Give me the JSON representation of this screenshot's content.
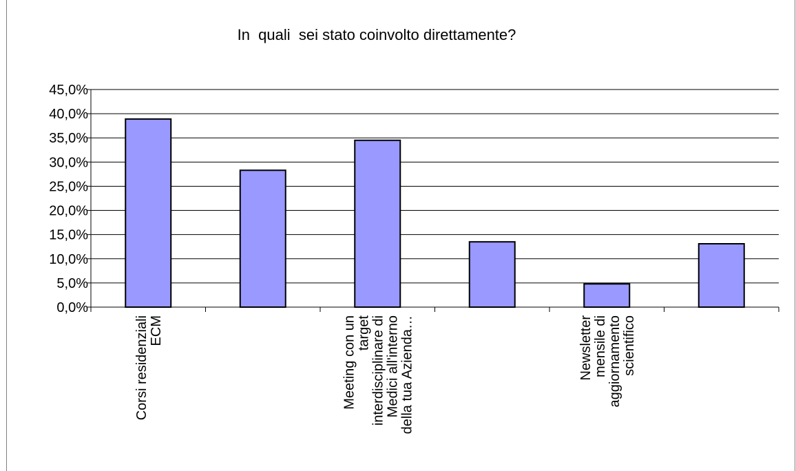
{
  "chart_data": {
    "type": "bar",
    "title": "In  quali  sei stato coinvolto direttamente?",
    "categories": [
      [
        "Corsi residenziali",
        "ECM"
      ],
      [],
      [
        "Meeting con un",
        "target",
        "interdisciplinare di",
        "Medici all'interno",
        "della tua Azienda…"
      ],
      [],
      [
        "Newsletter",
        "mensile di",
        "aggiornamento",
        "scientifico"
      ],
      []
    ],
    "values": [
      38.9,
      28.3,
      34.5,
      13.5,
      4.8,
      13.1
    ],
    "ylim": [
      0,
      45
    ],
    "yticks": [
      "0,0%",
      "5,0%",
      "10,0%",
      "15,0%",
      "20,0%",
      "25,0%",
      "30,0%",
      "35,0%",
      "40,0%",
      "45,0%"
    ],
    "grid": true,
    "colors": {
      "bar_fill": "#9999ff",
      "bar_stroke": "#000000",
      "grid": "#000000"
    }
  }
}
